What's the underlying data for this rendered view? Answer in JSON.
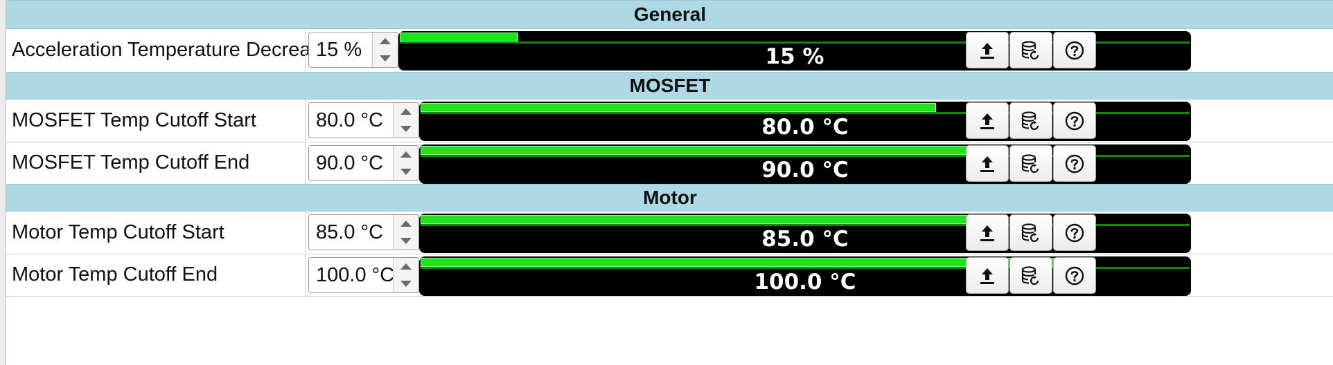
{
  "sections": [
    {
      "title": "General",
      "params": [
        {
          "label": "Acceleration Temperature Decrease",
          "value": "15 %",
          "display": "15 %",
          "fraction": 0.15
        }
      ]
    },
    {
      "title": "MOSFET",
      "params": [
        {
          "label": "MOSFET Temp Cutoff Start",
          "value": "80.0 °C",
          "display": "80.0 °C",
          "fraction": 0.67
        },
        {
          "label": "MOSFET Temp Cutoff End",
          "value": "90.0 °C",
          "display": "90.0 °C",
          "fraction": 0.755
        }
      ]
    },
    {
      "title": "Motor",
      "params": [
        {
          "label": "Motor Temp Cutoff Start",
          "value": "85.0 °C",
          "display": "85.0 °C",
          "fraction": 0.712
        },
        {
          "label": "Motor Temp Cutoff End",
          "value": "100.0 °C",
          "display": "100.0 °C",
          "fraction": 0.838
        }
      ]
    }
  ],
  "buttons": [
    {
      "name": "upload-icon"
    },
    {
      "name": "database-reset-icon"
    },
    {
      "name": "help-icon"
    }
  ],
  "colors": {
    "section_header_bg": "#add8e6",
    "bar_fill": "#1ee41e",
    "bar_track": "#0c8c0c",
    "bar_bg": "#000000"
  }
}
